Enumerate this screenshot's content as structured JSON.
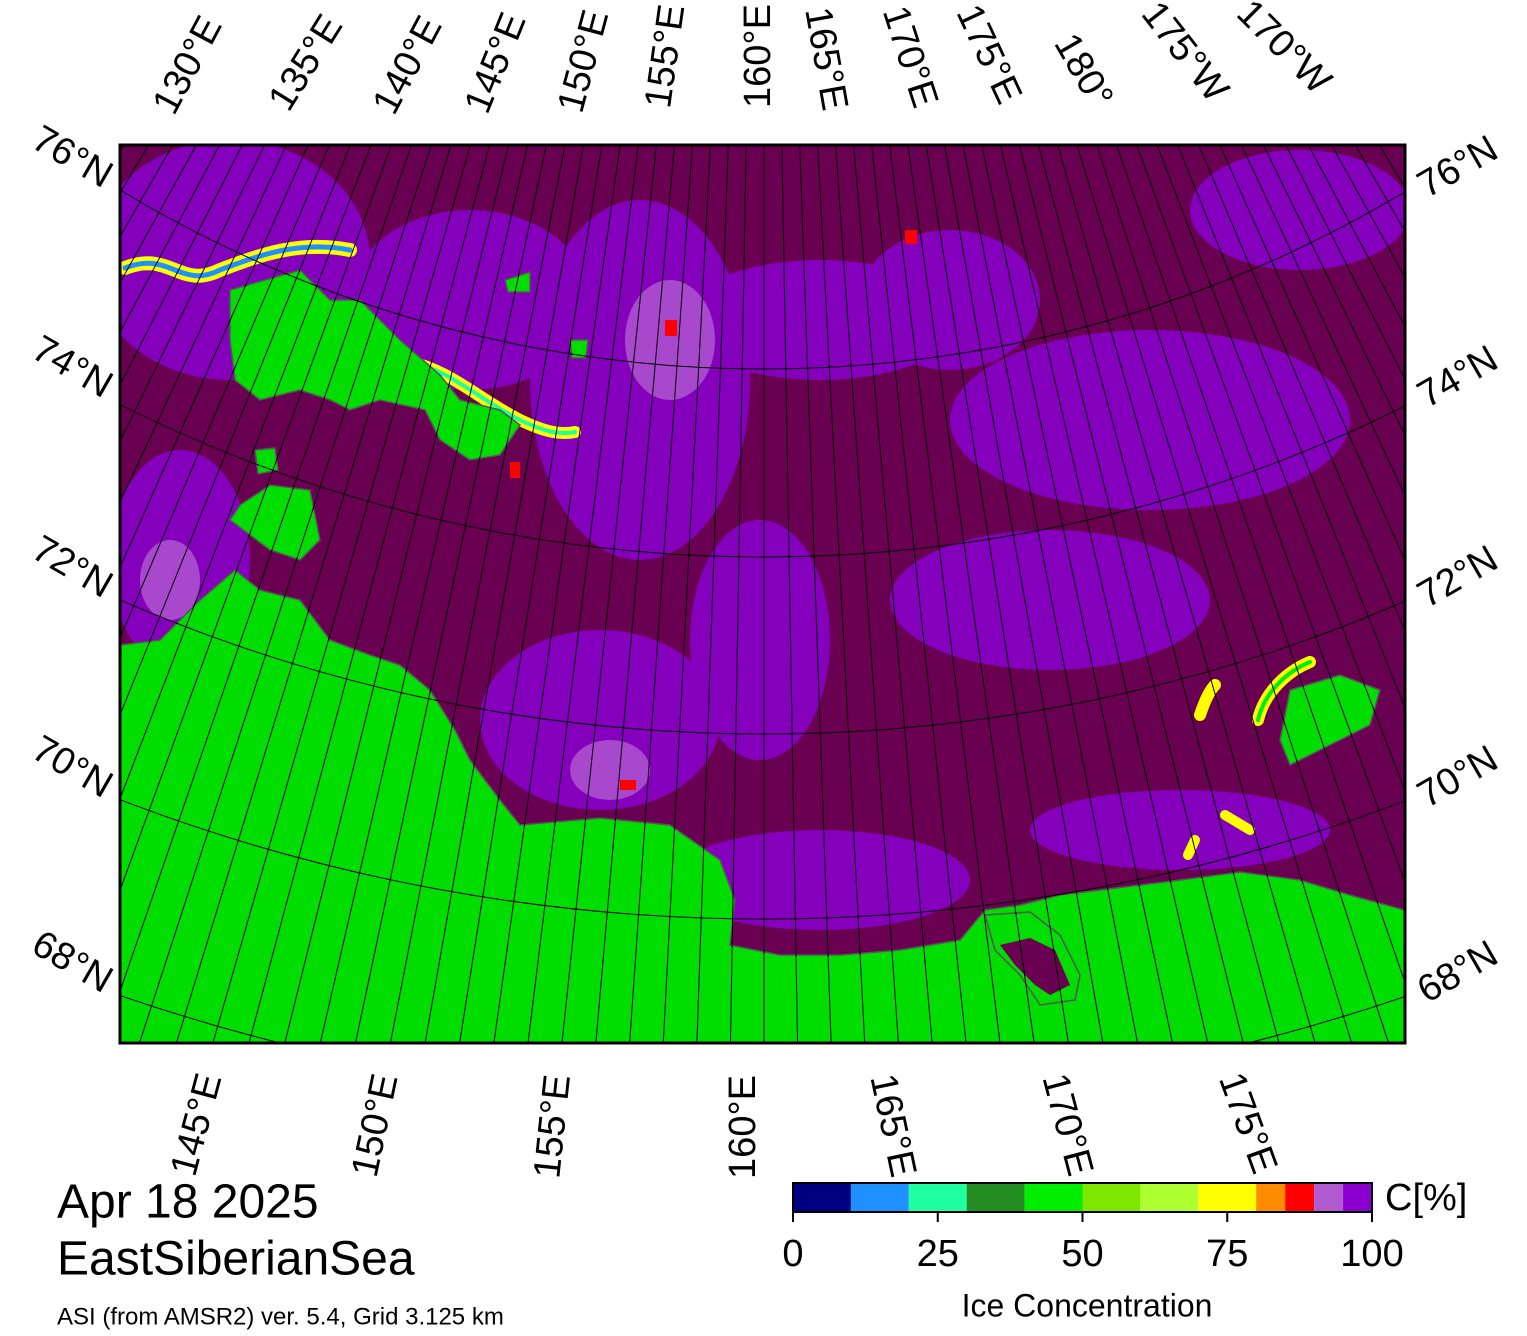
{
  "map": {
    "top_labels": [
      "130°E",
      "135°E",
      "140°E",
      "145°E",
      "150°E",
      "155°E",
      "160°E",
      "165°E",
      "170°E",
      "175°E",
      "180°",
      "175°W",
      "170°W"
    ],
    "bottom_labels": [
      "145°E",
      "150°E",
      "155°E",
      "160°E",
      "165°E",
      "170°E",
      "175°E"
    ],
    "left_labels": [
      "76°N",
      "74°N",
      "72°N",
      "70°N",
      "68°N"
    ],
    "right_labels": [
      "76°N",
      "74°N",
      "72°N",
      "70°N",
      "68°N"
    ]
  },
  "date": "Apr 18 2025",
  "region": "EastSiberianSea",
  "source": "ASI (from AMSR2) ver. 5.4,  Grid 3.125 km",
  "colorbar": {
    "unit": "C[%]",
    "label": "Ice Concentration",
    "lim": [
      0,
      100
    ],
    "ticks": [
      0,
      25,
      50,
      75,
      100
    ],
    "bins": [
      0,
      10,
      20,
      30,
      40,
      50,
      60,
      70,
      80,
      85,
      90,
      95,
      100
    ],
    "colors": [
      "#000080",
      "#1e90ff",
      "#1effa0",
      "#228b22",
      "#00ee00",
      "#7fe600",
      "#adff2f",
      "#ffff00",
      "#ff8c00",
      "#ff0000",
      "#b05ad0",
      "#8a00d0"
    ]
  }
}
